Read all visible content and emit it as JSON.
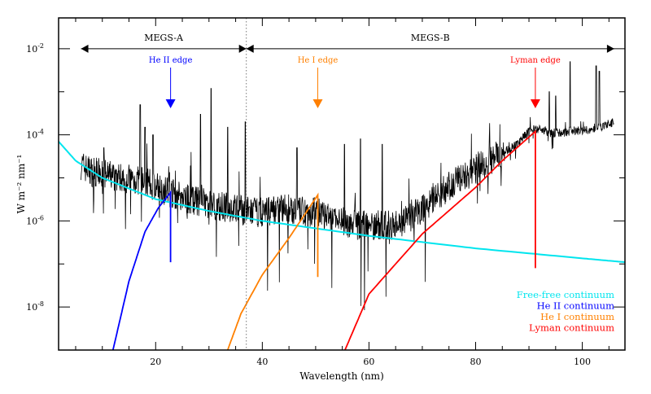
{
  "chart_data": {
    "type": "line",
    "title": "",
    "xlabel": "Wavelength (nm)",
    "ylabel": "W m⁻² nm⁻¹",
    "xlim": [
      1.8,
      108
    ],
    "ylim": [
      1e-09,
      0.052
    ],
    "yscale": "log",
    "grid": false,
    "x_ticks": [
      20,
      40,
      60,
      80,
      100
    ],
    "y_ticks": [
      {
        "value": 0.01,
        "label": "10",
        "exp": "-2"
      },
      {
        "value": 0.0001,
        "label": "10",
        "exp": "-4"
      },
      {
        "value": 1e-06,
        "label": "10",
        "exp": "-6"
      },
      {
        "value": 1e-08,
        "label": "10",
        "exp": "-8"
      }
    ],
    "spectrum": {
      "color": "#000000",
      "envelope": [
        [
          6,
          2e-05
        ],
        [
          8,
          1.4e-05
        ],
        [
          10,
          1.25e-05
        ],
        [
          12,
          1.1e-05
        ],
        [
          14,
          1e-05
        ],
        [
          16,
          9e-06
        ],
        [
          18,
          8e-06
        ],
        [
          20,
          6.3e-06
        ],
        [
          22,
          5e-06
        ],
        [
          24,
          4e-06
        ],
        [
          26,
          3.2e-06
        ],
        [
          28,
          2.8e-06
        ],
        [
          30,
          2.5e-06
        ],
        [
          32,
          2.2e-06
        ],
        [
          34,
          2e-06
        ],
        [
          36,
          1.8e-06
        ],
        [
          38,
          1.6e-06
        ],
        [
          40,
          1.6e-06
        ],
        [
          42,
          1.8e-06
        ],
        [
          44,
          2e-06
        ],
        [
          46,
          1.8e-06
        ],
        [
          48,
          1.6e-06
        ],
        [
          50,
          1.6e-06
        ],
        [
          52,
          1.25e-06
        ],
        [
          54,
          1e-06
        ],
        [
          56,
          9e-07
        ],
        [
          58,
          8e-07
        ],
        [
          60,
          8e-07
        ],
        [
          62,
          8e-07
        ],
        [
          64,
          8e-07
        ],
        [
          66,
          9e-07
        ],
        [
          68,
          1.25e-06
        ],
        [
          70,
          2e-06
        ],
        [
          72,
          3.2e-06
        ],
        [
          74,
          5e-06
        ],
        [
          76,
          8e-06
        ],
        [
          78,
          1.1e-05
        ],
        [
          80,
          1.6e-05
        ],
        [
          82,
          2.2e-05
        ],
        [
          84,
          3.2e-05
        ],
        [
          86,
          4.5e-05
        ],
        [
          88,
          6.3e-05
        ],
        [
          90,
          0.000125
        ],
        [
          92,
          0.00014
        ],
        [
          94,
          0.00011
        ],
        [
          96,
          0.00011
        ],
        [
          98,
          0.000125
        ],
        [
          100,
          0.000125
        ],
        [
          102,
          0.00014
        ],
        [
          104,
          0.00016
        ],
        [
          106,
          0.0002
        ]
      ],
      "lines": [
        [
          10.3,
          5e-05
        ],
        [
          17.1,
          0.0005
        ],
        [
          18.0,
          0.00015
        ],
        [
          19.5,
          0.0001
        ],
        [
          28.4,
          0.0003
        ],
        [
          30.4,
          0.0012
        ],
        [
          33.5,
          0.00015
        ],
        [
          36.8,
          0.0002
        ],
        [
          46.5,
          5e-05
        ],
        [
          55.4,
          6e-05
        ],
        [
          58.4,
          8e-05
        ],
        [
          62.5,
          6e-05
        ],
        [
          93.8,
          0.001
        ],
        [
          95.0,
          0.0008
        ],
        [
          97.7,
          0.005
        ],
        [
          102.6,
          0.004
        ],
        [
          103.2,
          0.003
        ]
      ]
    },
    "series": [
      {
        "name": "Free-free continuum",
        "color": "#00e5ee",
        "points": [
          [
            1.8,
            7e-05
          ],
          [
            5,
            2.5e-05
          ],
          [
            10,
            1e-05
          ],
          [
            20,
            3.2e-06
          ],
          [
            30,
            1.7e-06
          ],
          [
            40,
            1e-06
          ],
          [
            60,
            4.5e-07
          ],
          [
            80,
            2.3e-07
          ],
          [
            100,
            1.35e-07
          ],
          [
            108,
            1.1e-07
          ]
        ]
      },
      {
        "name": "He II continuum",
        "color": "#0000ff",
        "points": [
          [
            12,
            1e-09
          ],
          [
            15,
            4e-08
          ],
          [
            18,
            5.6e-07
          ],
          [
            20.5,
            2e-06
          ],
          [
            22.8,
            4.6e-06
          ],
          [
            22.8,
            1.1e-07
          ]
        ]
      },
      {
        "name": "He I continuum",
        "color": "#ff8000",
        "points": [
          [
            33.5,
            1e-09
          ],
          [
            36,
            7e-09
          ],
          [
            40,
            5.6e-08
          ],
          [
            45,
            4e-07
          ],
          [
            50.4,
            4e-06
          ],
          [
            50.4,
            5e-08
          ]
        ]
      },
      {
        "name": "Lyman continuum",
        "color": "#ff0000",
        "points": [
          [
            55.5,
            1e-09
          ],
          [
            60,
            2e-08
          ],
          [
            70,
            5e-07
          ],
          [
            80,
            6e-06
          ],
          [
            85,
            2.5e-05
          ],
          [
            91.2,
            0.00012
          ],
          [
            91.2,
            8e-08
          ]
        ]
      }
    ],
    "legend_placement": "bottom-right",
    "annotations": {
      "ranges": [
        {
          "label": "MEGS-A",
          "from": 6,
          "to": 37
        },
        {
          "label": "MEGS-B",
          "from": 37,
          "to": 106
        }
      ],
      "range_y": 0.01,
      "divider_x": 37,
      "edges": [
        {
          "label": "He II edge",
          "x": 22.8,
          "color": "#0000ff"
        },
        {
          "label": "He I edge",
          "x": 50.4,
          "color": "#ff8000"
        },
        {
          "label": "Lyman edge",
          "x": 91.2,
          "color": "#ff0000"
        }
      ]
    }
  }
}
